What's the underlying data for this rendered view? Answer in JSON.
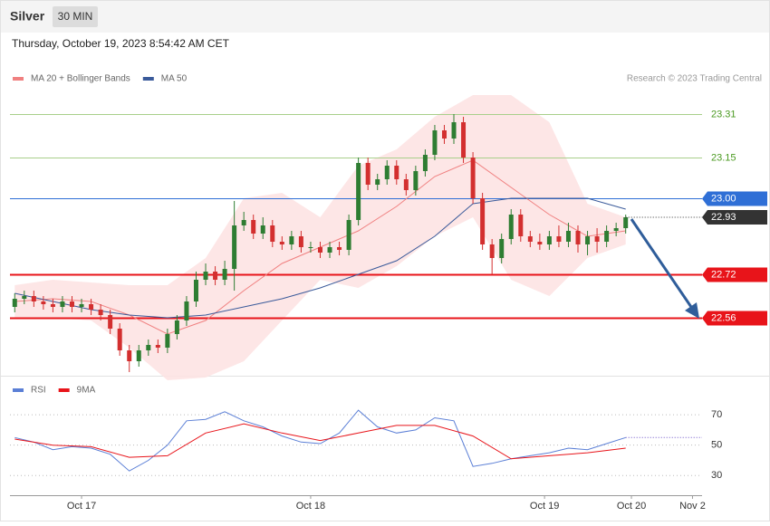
{
  "header": {
    "title": "Silver",
    "interval": "30 MIN",
    "timestamp": "Thursday, October 19, 2023 8:54:42 AM CET",
    "credit": "Research © 2023 Trading Central"
  },
  "chart_data": [
    {
      "type": "candlestick",
      "ylim": [
        22.35,
        23.41
      ],
      "xlim": [
        -0.5,
        72
      ],
      "up_color": "#2e7d32",
      "down_color": "#d32f2f",
      "open": [
        22.6,
        22.63,
        22.64,
        22.62,
        22.61,
        22.6,
        22.62,
        22.6,
        22.61,
        22.59,
        22.57,
        22.52,
        22.44,
        22.4,
        22.44,
        22.46,
        22.45,
        22.5,
        22.55,
        22.62,
        22.7,
        22.73,
        22.7,
        22.74,
        22.9,
        22.92,
        22.87,
        22.9,
        22.84,
        22.83,
        22.86,
        22.82,
        22.82,
        22.8,
        22.82,
        22.81,
        22.92,
        23.13,
        23.05,
        23.07,
        23.12,
        23.07,
        23.03,
        23.1,
        23.16,
        23.25,
        23.22,
        23.28,
        23.15,
        23.0,
        22.83,
        22.78,
        22.85,
        22.94,
        22.86,
        22.84,
        22.83,
        22.86,
        22.84,
        22.88,
        22.83,
        22.86,
        22.84,
        22.88,
        22.89
      ],
      "high": [
        22.65,
        22.66,
        22.66,
        22.64,
        22.63,
        22.64,
        22.64,
        22.63,
        22.63,
        22.61,
        22.59,
        22.54,
        22.46,
        22.46,
        22.48,
        22.48,
        22.52,
        22.57,
        22.64,
        22.73,
        22.76,
        22.75,
        22.77,
        22.99,
        22.95,
        22.94,
        22.93,
        22.92,
        22.86,
        22.88,
        22.88,
        22.84,
        22.84,
        22.84,
        22.84,
        22.94,
        23.15,
        23.15,
        23.09,
        23.14,
        23.14,
        23.09,
        23.12,
        23.18,
        23.27,
        23.27,
        23.31,
        23.3,
        23.17,
        23.02,
        22.85,
        22.87,
        22.96,
        22.96,
        22.88,
        22.87,
        22.88,
        22.9,
        22.91,
        22.9,
        22.88,
        22.89,
        22.9,
        22.91,
        22.94
      ],
      "low": [
        22.58,
        22.61,
        22.6,
        22.59,
        22.58,
        22.58,
        22.58,
        22.58,
        22.57,
        22.55,
        22.5,
        22.42,
        22.36,
        22.38,
        22.42,
        22.43,
        22.43,
        22.48,
        22.53,
        22.6,
        22.68,
        22.68,
        22.68,
        22.66,
        22.88,
        22.85,
        22.85,
        22.82,
        22.81,
        22.81,
        22.8,
        22.8,
        22.78,
        22.78,
        22.79,
        22.79,
        22.9,
        23.03,
        23.03,
        23.05,
        23.05,
        23.01,
        23.01,
        23.08,
        23.14,
        23.2,
        23.2,
        23.13,
        22.98,
        22.81,
        22.72,
        22.76,
        22.83,
        22.84,
        22.82,
        22.81,
        22.81,
        22.82,
        22.82,
        22.8,
        22.79,
        22.8,
        22.82,
        22.86,
        22.87
      ],
      "close": [
        22.63,
        22.64,
        22.62,
        22.61,
        22.6,
        22.62,
        22.6,
        22.61,
        22.59,
        22.57,
        22.52,
        22.44,
        22.4,
        22.44,
        22.46,
        22.45,
        22.5,
        22.55,
        22.62,
        22.7,
        22.73,
        22.7,
        22.74,
        22.9,
        22.92,
        22.87,
        22.9,
        22.84,
        22.83,
        22.86,
        22.82,
        22.82,
        22.8,
        22.82,
        22.81,
        22.92,
        23.13,
        23.05,
        23.07,
        23.12,
        23.07,
        23.03,
        23.1,
        23.16,
        23.25,
        23.22,
        23.28,
        23.15,
        23.0,
        22.83,
        22.78,
        22.85,
        22.94,
        22.86,
        22.84,
        22.83,
        22.86,
        22.84,
        22.88,
        22.83,
        22.86,
        22.84,
        22.88,
        22.89,
        22.93
      ],
      "series": [
        {
          "name": "MA 20 + Bollinger Bands",
          "color": "#f08080",
          "x": [
            0,
            4,
            8,
            12,
            16,
            20,
            24,
            28,
            32,
            36,
            40,
            44,
            48,
            52,
            56,
            60,
            64
          ],
          "values": [
            22.62,
            22.63,
            22.62,
            22.57,
            22.5,
            22.55,
            22.66,
            22.76,
            22.82,
            22.88,
            22.97,
            23.08,
            23.14,
            23.04,
            22.94,
            22.86,
            22.88
          ]
        },
        {
          "name": "MA 50",
          "color": "#3a5a9a",
          "x": [
            0,
            4,
            8,
            12,
            16,
            20,
            24,
            28,
            32,
            36,
            40,
            44,
            48,
            52,
            56,
            60,
            64
          ],
          "values": [
            22.65,
            22.62,
            22.59,
            22.57,
            22.56,
            22.57,
            22.6,
            22.63,
            22.67,
            22.72,
            22.77,
            22.86,
            22.98,
            23.0,
            23.0,
            23.0,
            22.96
          ]
        }
      ],
      "bands": {
        "color": "#fde2e2",
        "x": [
          0,
          4,
          8,
          12,
          16,
          20,
          24,
          28,
          32,
          36,
          40,
          44,
          48,
          52,
          56,
          60,
          64
        ],
        "upper": [
          22.68,
          22.7,
          22.69,
          22.68,
          22.68,
          22.78,
          23.0,
          23.02,
          22.93,
          23.12,
          23.18,
          23.3,
          23.38,
          23.38,
          23.28,
          22.98,
          22.93
        ],
        "lower": [
          22.56,
          22.56,
          22.55,
          22.45,
          22.33,
          22.34,
          22.4,
          22.55,
          22.7,
          22.67,
          22.75,
          22.86,
          22.93,
          22.7,
          22.64,
          22.78,
          22.83
        ]
      },
      "levels": [
        {
          "value": 23.31,
          "color": "#a8cf8a"
        },
        {
          "value": 23.15,
          "color": "#a8cf8a"
        },
        {
          "value": 23,
          "label": "23.00",
          "color": "#2f6fd6"
        },
        {
          "value": 22.72,
          "color": "#e8141a"
        },
        {
          "value": 22.56,
          "color": "#e8141a"
        }
      ],
      "last_price": 22.93,
      "xticks": [
        {
          "value": 7,
          "label": "Oct 17"
        },
        {
          "value": 31,
          "label": "Oct 18"
        },
        {
          "value": 55.5,
          "label": "Oct 19"
        },
        {
          "value": 64.6,
          "label": "Oct 20"
        },
        {
          "value": 71,
          "label": "Nov 2"
        }
      ]
    },
    {
      "type": "line",
      "ylim": [
        20,
        82
      ],
      "xlim": [
        -0.5,
        72
      ],
      "yticks": [
        70,
        50,
        30
      ],
      "series": [
        {
          "name": "RSI",
          "color": "#5b7fd6",
          "x": [
            0,
            2,
            4,
            6,
            8,
            10,
            12,
            14,
            16,
            18,
            20,
            22,
            24,
            26,
            28,
            30,
            32,
            34,
            36,
            38,
            40,
            42,
            44,
            46,
            48,
            50,
            52,
            54,
            56,
            58,
            60,
            62,
            64
          ],
          "values": [
            55,
            52,
            47,
            49,
            48,
            44,
            33,
            40,
            50,
            66,
            67,
            72,
            66,
            62,
            56,
            52,
            51,
            58,
            73,
            62,
            58,
            60,
            68,
            66,
            36,
            38,
            41,
            43,
            45,
            48,
            47,
            51,
            55
          ]
        },
        {
          "name": "9MA",
          "color": "#e8141a",
          "x": [
            0,
            4,
            8,
            12,
            16,
            20,
            24,
            28,
            32,
            36,
            40,
            44,
            48,
            52,
            56,
            60,
            64
          ],
          "values": [
            54,
            50,
            49,
            42,
            43,
            58,
            64,
            58,
            53,
            58,
            63,
            63,
            56,
            41,
            43,
            45,
            48
          ]
        }
      ]
    }
  ]
}
